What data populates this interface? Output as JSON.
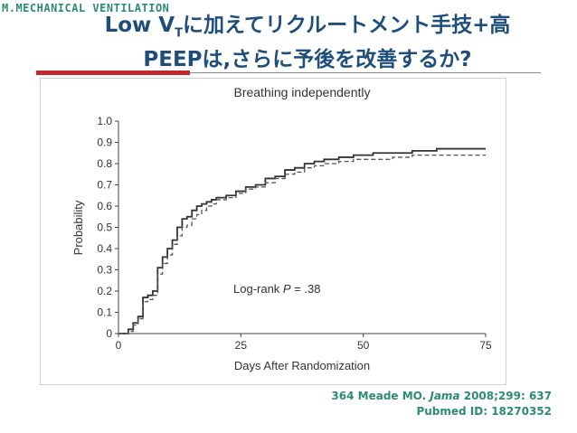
{
  "slide": {
    "section_tag": "M.MECHANICAL VENTILATION",
    "title": {
      "line1_prefix": "Low V",
      "line1_sub": "T",
      "line1_suffix": "に加えてリクルートメント手技+高",
      "line2": "PEEPは,さらに予後を改善するか?"
    },
    "citation": {
      "prefix": "364 Meade MO.",
      "journal": "Jama",
      "details": "2008;299: 637",
      "pubmed": "Pubmed ID: 18270352"
    },
    "colors": {
      "title": "#1f4e79",
      "accent_red": "#c0282d",
      "teal": "#2e8b72"
    }
  },
  "chart_data": {
    "type": "line",
    "title": "Breathing independently",
    "xlabel": "Days After Randomization",
    "ylabel": "Probability",
    "xlim": [
      0,
      75
    ],
    "ylim": [
      0,
      1.0
    ],
    "x_ticks": [
      0,
      25,
      50,
      75
    ],
    "y_ticks": [
      0,
      0.1,
      0.2,
      0.3,
      0.4,
      0.5,
      0.6,
      0.7,
      0.8,
      0.9,
      1.0
    ],
    "y_tick_labels": [
      "0",
      "0.1",
      "0.2",
      "0.3",
      "0.4",
      "0.5",
      "0.6",
      "0.7",
      "0.8",
      "0.9",
      "1.0"
    ],
    "annotation": {
      "text_prefix": "Log-rank ",
      "text_var": "P",
      "text_suffix": " = .38"
    },
    "grid": false,
    "series": [
      {
        "style": "solid",
        "x": [
          0,
          2,
          3,
          4,
          5,
          6,
          7,
          8,
          9,
          10,
          11,
          12,
          13,
          14,
          15,
          16,
          17,
          18,
          19,
          20,
          22,
          24,
          26,
          28,
          30,
          32,
          34,
          36,
          38,
          40,
          42,
          45,
          48,
          52,
          56,
          60,
          65,
          70,
          75
        ],
        "y": [
          0,
          0.02,
          0.05,
          0.08,
          0.17,
          0.18,
          0.2,
          0.31,
          0.36,
          0.4,
          0.44,
          0.5,
          0.54,
          0.55,
          0.58,
          0.6,
          0.61,
          0.62,
          0.63,
          0.64,
          0.65,
          0.67,
          0.69,
          0.7,
          0.73,
          0.74,
          0.77,
          0.78,
          0.8,
          0.81,
          0.82,
          0.83,
          0.84,
          0.85,
          0.85,
          0.86,
          0.87,
          0.87,
          0.87
        ]
      },
      {
        "style": "dashed",
        "x": [
          0,
          2,
          3,
          4,
          5,
          6,
          7,
          8,
          9,
          10,
          11,
          12,
          13,
          14,
          15,
          16,
          17,
          18,
          19,
          20,
          22,
          24,
          26,
          28,
          30,
          32,
          34,
          36,
          38,
          40,
          42,
          45,
          48,
          52,
          56,
          60,
          65,
          70,
          75
        ],
        "y": [
          0,
          0.01,
          0.04,
          0.07,
          0.15,
          0.16,
          0.18,
          0.28,
          0.33,
          0.37,
          0.42,
          0.46,
          0.5,
          0.51,
          0.54,
          0.56,
          0.58,
          0.6,
          0.61,
          0.63,
          0.64,
          0.66,
          0.68,
          0.69,
          0.71,
          0.73,
          0.75,
          0.76,
          0.78,
          0.79,
          0.8,
          0.81,
          0.82,
          0.82,
          0.83,
          0.84,
          0.84,
          0.84,
          0.84
        ]
      }
    ]
  }
}
